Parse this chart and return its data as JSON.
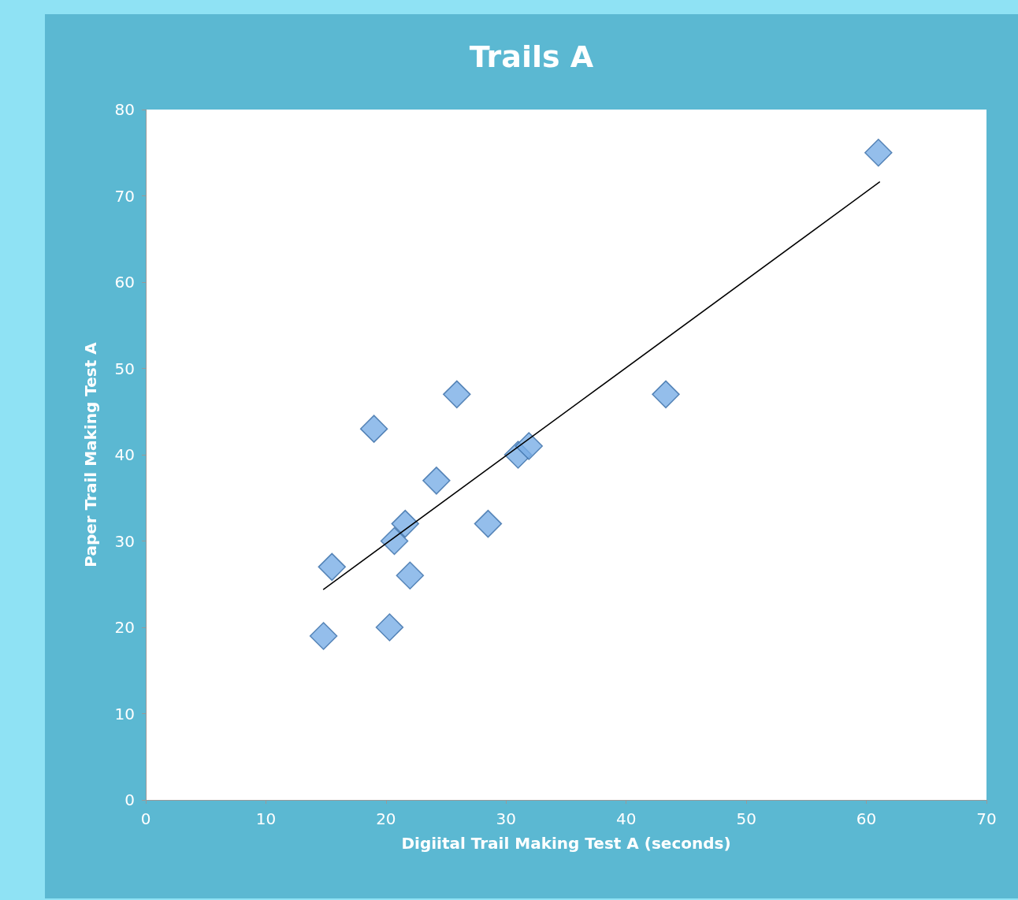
{
  "chart_data": {
    "type": "scatter",
    "title": "Trails A",
    "xlabel": "Digiital Trail Making Test A (seconds)",
    "ylabel": "Paper Trail Making Test A",
    "xlim": [
      0,
      70
    ],
    "xticks": [
      0,
      10,
      20,
      30,
      40,
      50,
      60,
      70
    ],
    "ylim": [
      0,
      80
    ],
    "yticks": [
      0,
      10,
      20,
      30,
      40,
      50,
      60,
      70,
      80
    ],
    "grid": false,
    "marker": "diamond",
    "series": [
      {
        "color": "#79aee6",
        "x": [
          14.8,
          15.5,
          19.0,
          20.3,
          20.7,
          21.6,
          22.0,
          24.2,
          25.9,
          28.5,
          31.0,
          31.9,
          43.3,
          61.0
        ],
        "values": [
          19,
          27,
          43,
          20,
          30,
          32,
          26,
          37,
          47,
          32,
          40,
          41,
          47,
          75
        ]
      },
      {
        "type": "line",
        "color": "#000000",
        "marker": "none",
        "line_style": "solid",
        "x": [
          14.8,
          61.1
        ],
        "values": [
          24.4,
          71.6
        ]
      }
    ]
  }
}
